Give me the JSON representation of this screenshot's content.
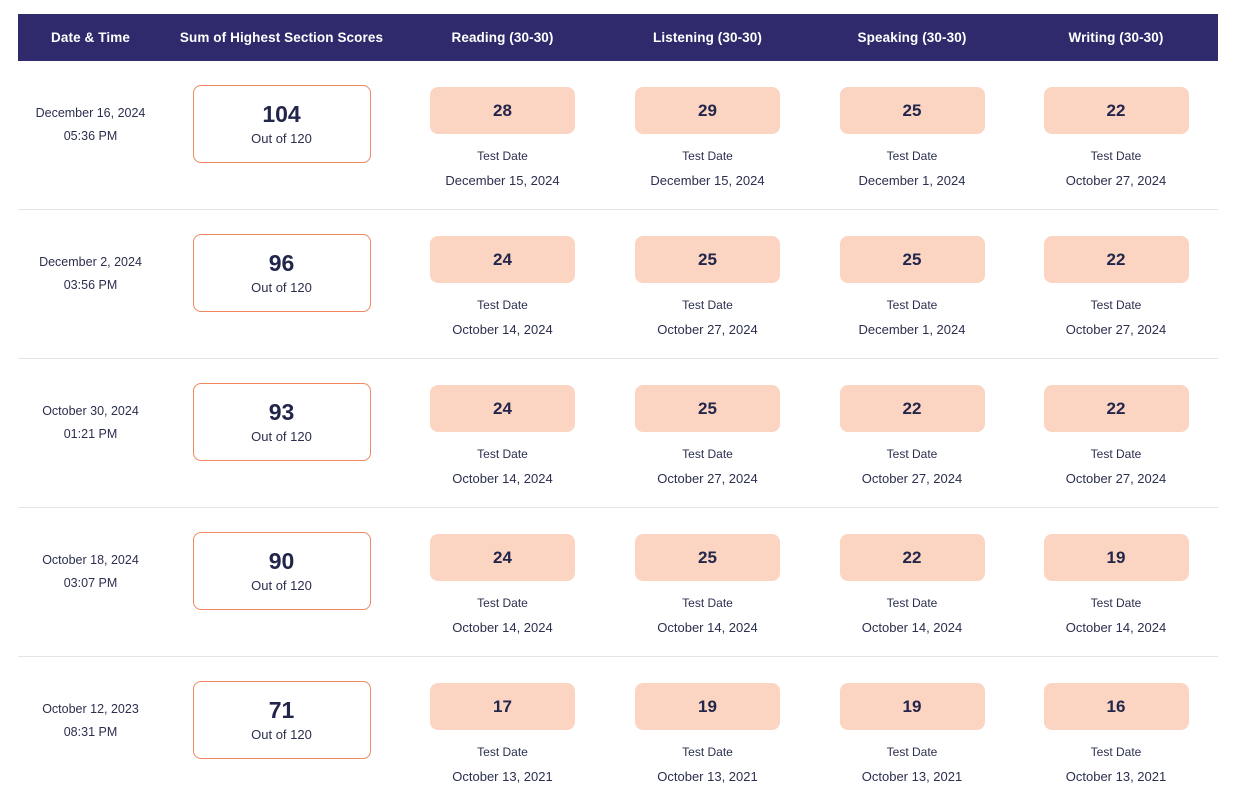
{
  "colors": {
    "header_background": "#2E2A6B",
    "header_text": "#FFFFFF",
    "section_score_background": "#FBD4C2",
    "sum_box_border": "#F0875F",
    "text_dark": "#23264B",
    "row_separator": "#E2E6EA"
  },
  "table": {
    "columns": [
      {
        "label": "Date & Time"
      },
      {
        "label": "Sum of Highest Section Scores"
      },
      {
        "label": "Reading (30-30)"
      },
      {
        "label": "Listening (30-30)"
      },
      {
        "label": "Speaking (30-30)"
      },
      {
        "label": "Writing (30-30)"
      }
    ],
    "sum_caption": "Out of 120",
    "test_date_label": "Test Date",
    "rows": [
      {
        "date": "December 16, 2024",
        "time": "05:36 PM",
        "total": "104",
        "sections": [
          {
            "score": "28",
            "test_date": "December 15, 2024"
          },
          {
            "score": "29",
            "test_date": "December 15, 2024"
          },
          {
            "score": "25",
            "test_date": "December 1, 2024"
          },
          {
            "score": "22",
            "test_date": "October 27, 2024"
          }
        ]
      },
      {
        "date": "December 2, 2024",
        "time": "03:56 PM",
        "total": "96",
        "sections": [
          {
            "score": "24",
            "test_date": "October 14, 2024"
          },
          {
            "score": "25",
            "test_date": "October 27, 2024"
          },
          {
            "score": "25",
            "test_date": "December 1, 2024"
          },
          {
            "score": "22",
            "test_date": "October 27, 2024"
          }
        ]
      },
      {
        "date": "October 30, 2024",
        "time": "01:21 PM",
        "total": "93",
        "sections": [
          {
            "score": "24",
            "test_date": "October 14, 2024"
          },
          {
            "score": "25",
            "test_date": "October 27, 2024"
          },
          {
            "score": "22",
            "test_date": "October 27, 2024"
          },
          {
            "score": "22",
            "test_date": "October 27, 2024"
          }
        ]
      },
      {
        "date": "October 18, 2024",
        "time": "03:07 PM",
        "total": "90",
        "sections": [
          {
            "score": "24",
            "test_date": "October 14, 2024"
          },
          {
            "score": "25",
            "test_date": "October 14, 2024"
          },
          {
            "score": "22",
            "test_date": "October 14, 2024"
          },
          {
            "score": "19",
            "test_date": "October 14, 2024"
          }
        ]
      },
      {
        "date": "October 12, 2023",
        "time": "08:31 PM",
        "total": "71",
        "sections": [
          {
            "score": "17",
            "test_date": "October 13, 2021"
          },
          {
            "score": "19",
            "test_date": "October 13, 2021"
          },
          {
            "score": "19",
            "test_date": "October 13, 2021"
          },
          {
            "score": "16",
            "test_date": "October 13, 2021"
          }
        ]
      }
    ]
  }
}
